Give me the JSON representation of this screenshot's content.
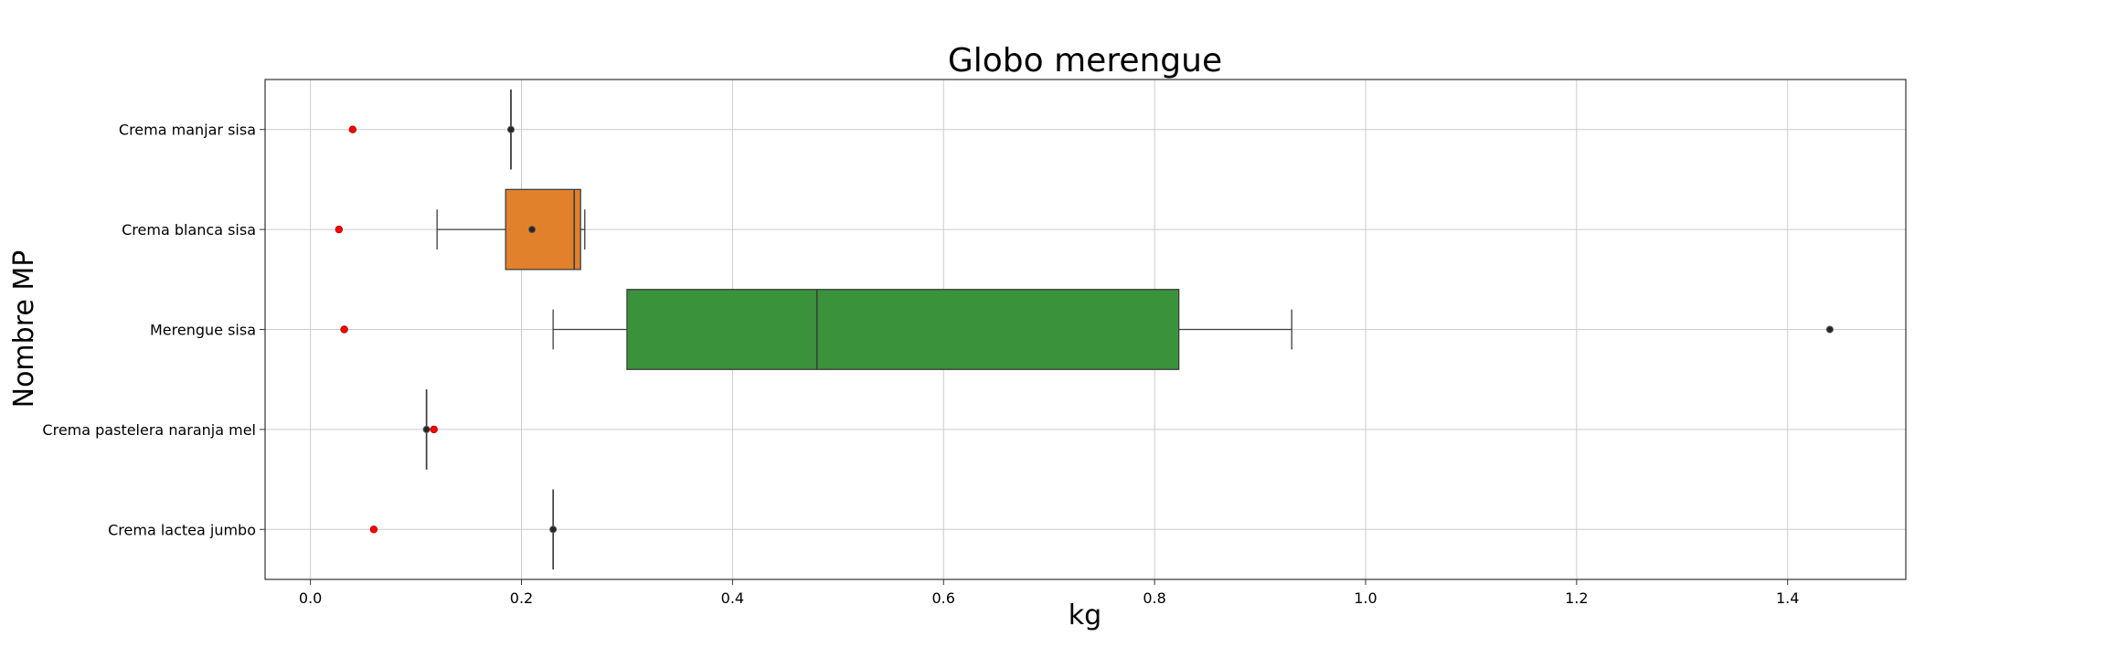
{
  "chart_data": {
    "type": "box",
    "title": "Globo merengue",
    "xlabel": "kg",
    "ylabel": "Nombre MP",
    "orientation": "horizontal",
    "xlim": [
      -0.043,
      1.512
    ],
    "x_ticks": [
      0.0,
      0.2,
      0.4,
      0.6,
      0.8,
      1.0,
      1.2,
      1.4
    ],
    "x_tick_labels": [
      "0.0",
      "0.2",
      "0.4",
      "0.6",
      "0.8",
      "1.0",
      "1.2",
      "1.4"
    ],
    "grid": true,
    "categories": [
      "Crema manjar sisa",
      "Crema blanca sisa",
      "Merengue sisa",
      "Crema pastelera naranja mel",
      "Crema lactea jumbo"
    ],
    "boxes": [
      {
        "name": "Crema manjar sisa",
        "whisker_low": 0.19,
        "q1": 0.19,
        "median": 0.19,
        "q3": 0.19,
        "whisker_high": 0.19,
        "outliers": [
          0.19
        ],
        "red_point": 0.04,
        "color": ""
      },
      {
        "name": "Crema blanca sisa",
        "whisker_low": 0.12,
        "q1": 0.185,
        "median": 0.25,
        "q3": 0.256,
        "whisker_high": 0.26,
        "outliers": [
          0.21
        ],
        "red_point": 0.027,
        "color": "#e1812c"
      },
      {
        "name": "Merengue sisa",
        "whisker_low": 0.23,
        "q1": 0.3,
        "median": 0.48,
        "q3": 0.823,
        "whisker_high": 0.93,
        "outliers": [
          1.44
        ],
        "red_point": 0.032,
        "color": "#3a923a"
      },
      {
        "name": "Crema pastelera naranja mel",
        "whisker_low": 0.11,
        "q1": 0.11,
        "median": 0.11,
        "q3": 0.11,
        "whisker_high": 0.11,
        "outliers": [
          0.11
        ],
        "red_point": 0.117,
        "color": ""
      },
      {
        "name": "Crema lactea jumbo",
        "whisker_low": 0.23,
        "q1": 0.23,
        "median": 0.23,
        "q3": 0.23,
        "whisker_high": 0.23,
        "outliers": [
          0.23
        ],
        "red_point": 0.06,
        "color": ""
      }
    ],
    "colors": {
      "grid": "#cccccc",
      "whisker": "#3d3d3d",
      "red_point": "#ff0000",
      "outlier": "#262626"
    }
  }
}
